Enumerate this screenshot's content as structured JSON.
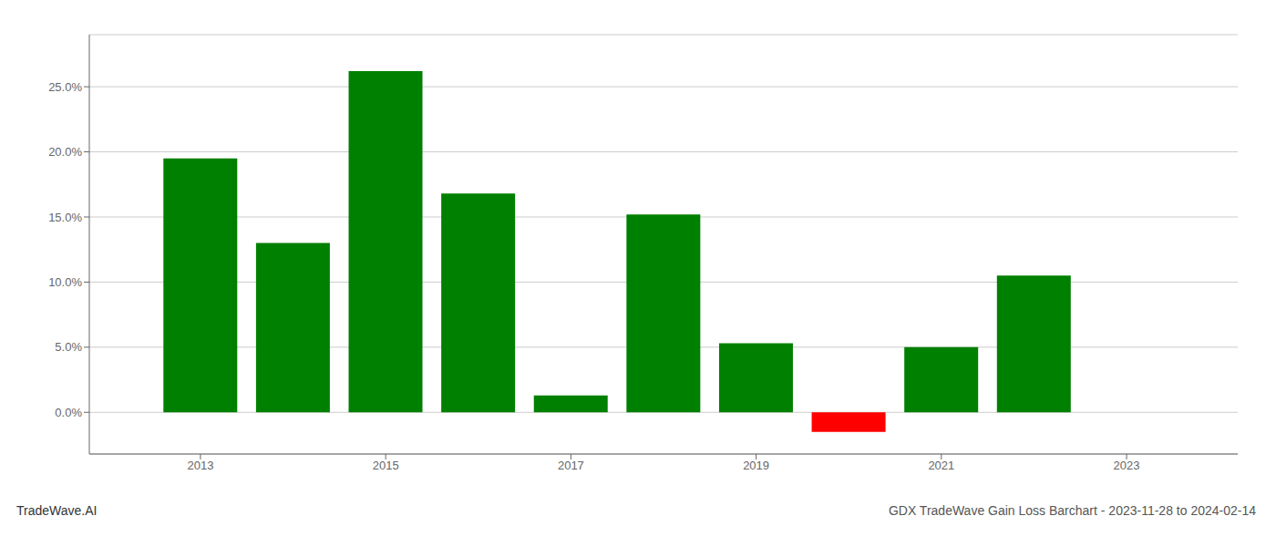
{
  "chart_data": {
    "type": "bar",
    "title": "GDX TradeWave Gain Loss Barchart - 2023-11-28 to 2024-02-14",
    "annotations": [
      "TradeWave.AI"
    ],
    "x": [
      2013,
      2014,
      2015,
      2016,
      2017,
      2018,
      2019,
      2020,
      2021,
      2022
    ],
    "values": [
      0.195,
      0.13,
      0.262,
      0.168,
      0.013,
      0.152,
      0.053,
      -0.015,
      0.05,
      0.105
    ],
    "colors": [
      "#008000",
      "#008000",
      "#008000",
      "#008000",
      "#008000",
      "#008000",
      "#008000",
      "#ff0000",
      "#008000",
      "#008000"
    ],
    "xlim": [
      2011.8,
      2024.2
    ],
    "xticks": [
      2013,
      2015,
      2017,
      2019,
      2021,
      2023
    ],
    "ylim": [
      -0.032,
      0.29
    ],
    "yticks": [
      {
        "value": 0.0,
        "label": "0.0%"
      },
      {
        "value": 0.05,
        "label": "5.0%"
      },
      {
        "value": 0.1,
        "label": "10.0%"
      },
      {
        "value": 0.15,
        "label": "15.0%"
      },
      {
        "value": 0.2,
        "label": "20.0%"
      },
      {
        "value": 0.25,
        "label": "25.0%"
      }
    ],
    "grid": true
  }
}
